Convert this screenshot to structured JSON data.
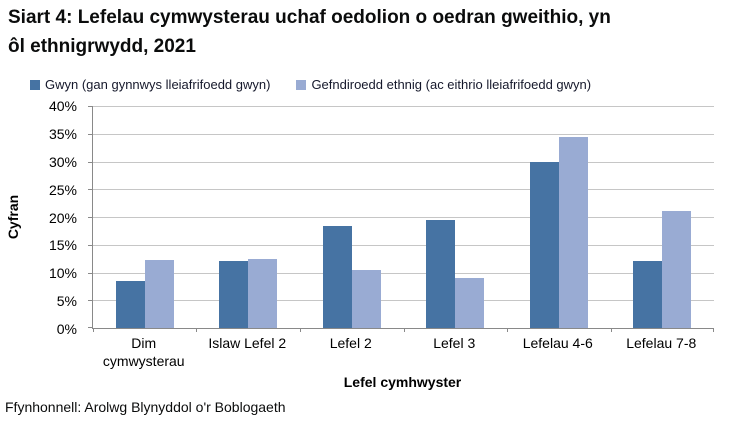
{
  "source": "Ffynhonnell: Arolwg Blynyddol o'r Boblogaeth",
  "chart_data": {
    "type": "bar",
    "title": "Siart 4: Lefelau cymwysterau uchaf oedolion o oedran gweithio, yn ôl ethnigrwydd, 2021",
    "categories": [
      "Dim cymwysterau",
      "Islaw Lefel 2",
      "Lefel 2",
      "Lefel 3",
      "Lefelau 4-6",
      "Lefelau 7-8"
    ],
    "series": [
      {
        "name": "Gwyn (gan gynnwys lleiafrifoedd gwyn)",
        "color": "#4673a3",
        "values": [
          8.4,
          12.0,
          18.3,
          19.4,
          29.9,
          12.0
        ]
      },
      {
        "name": "Gefndiroedd ethnig (ac eithrio lleiafrifoedd gwyn)",
        "color": "#99abd3",
        "values": [
          12.2,
          12.5,
          10.5,
          9.1,
          34.5,
          21.0
        ]
      }
    ],
    "xlabel": "Lefel cymhwyster",
    "ylabel": "Cyfran",
    "ylim": [
      0,
      40
    ],
    "ytick_step": 5,
    "ytick_suffix": "%",
    "grid": "horizontal",
    "legend_position": "top",
    "colors": {
      "gridline": "#c6c6c6",
      "axis": "#898989"
    }
  }
}
